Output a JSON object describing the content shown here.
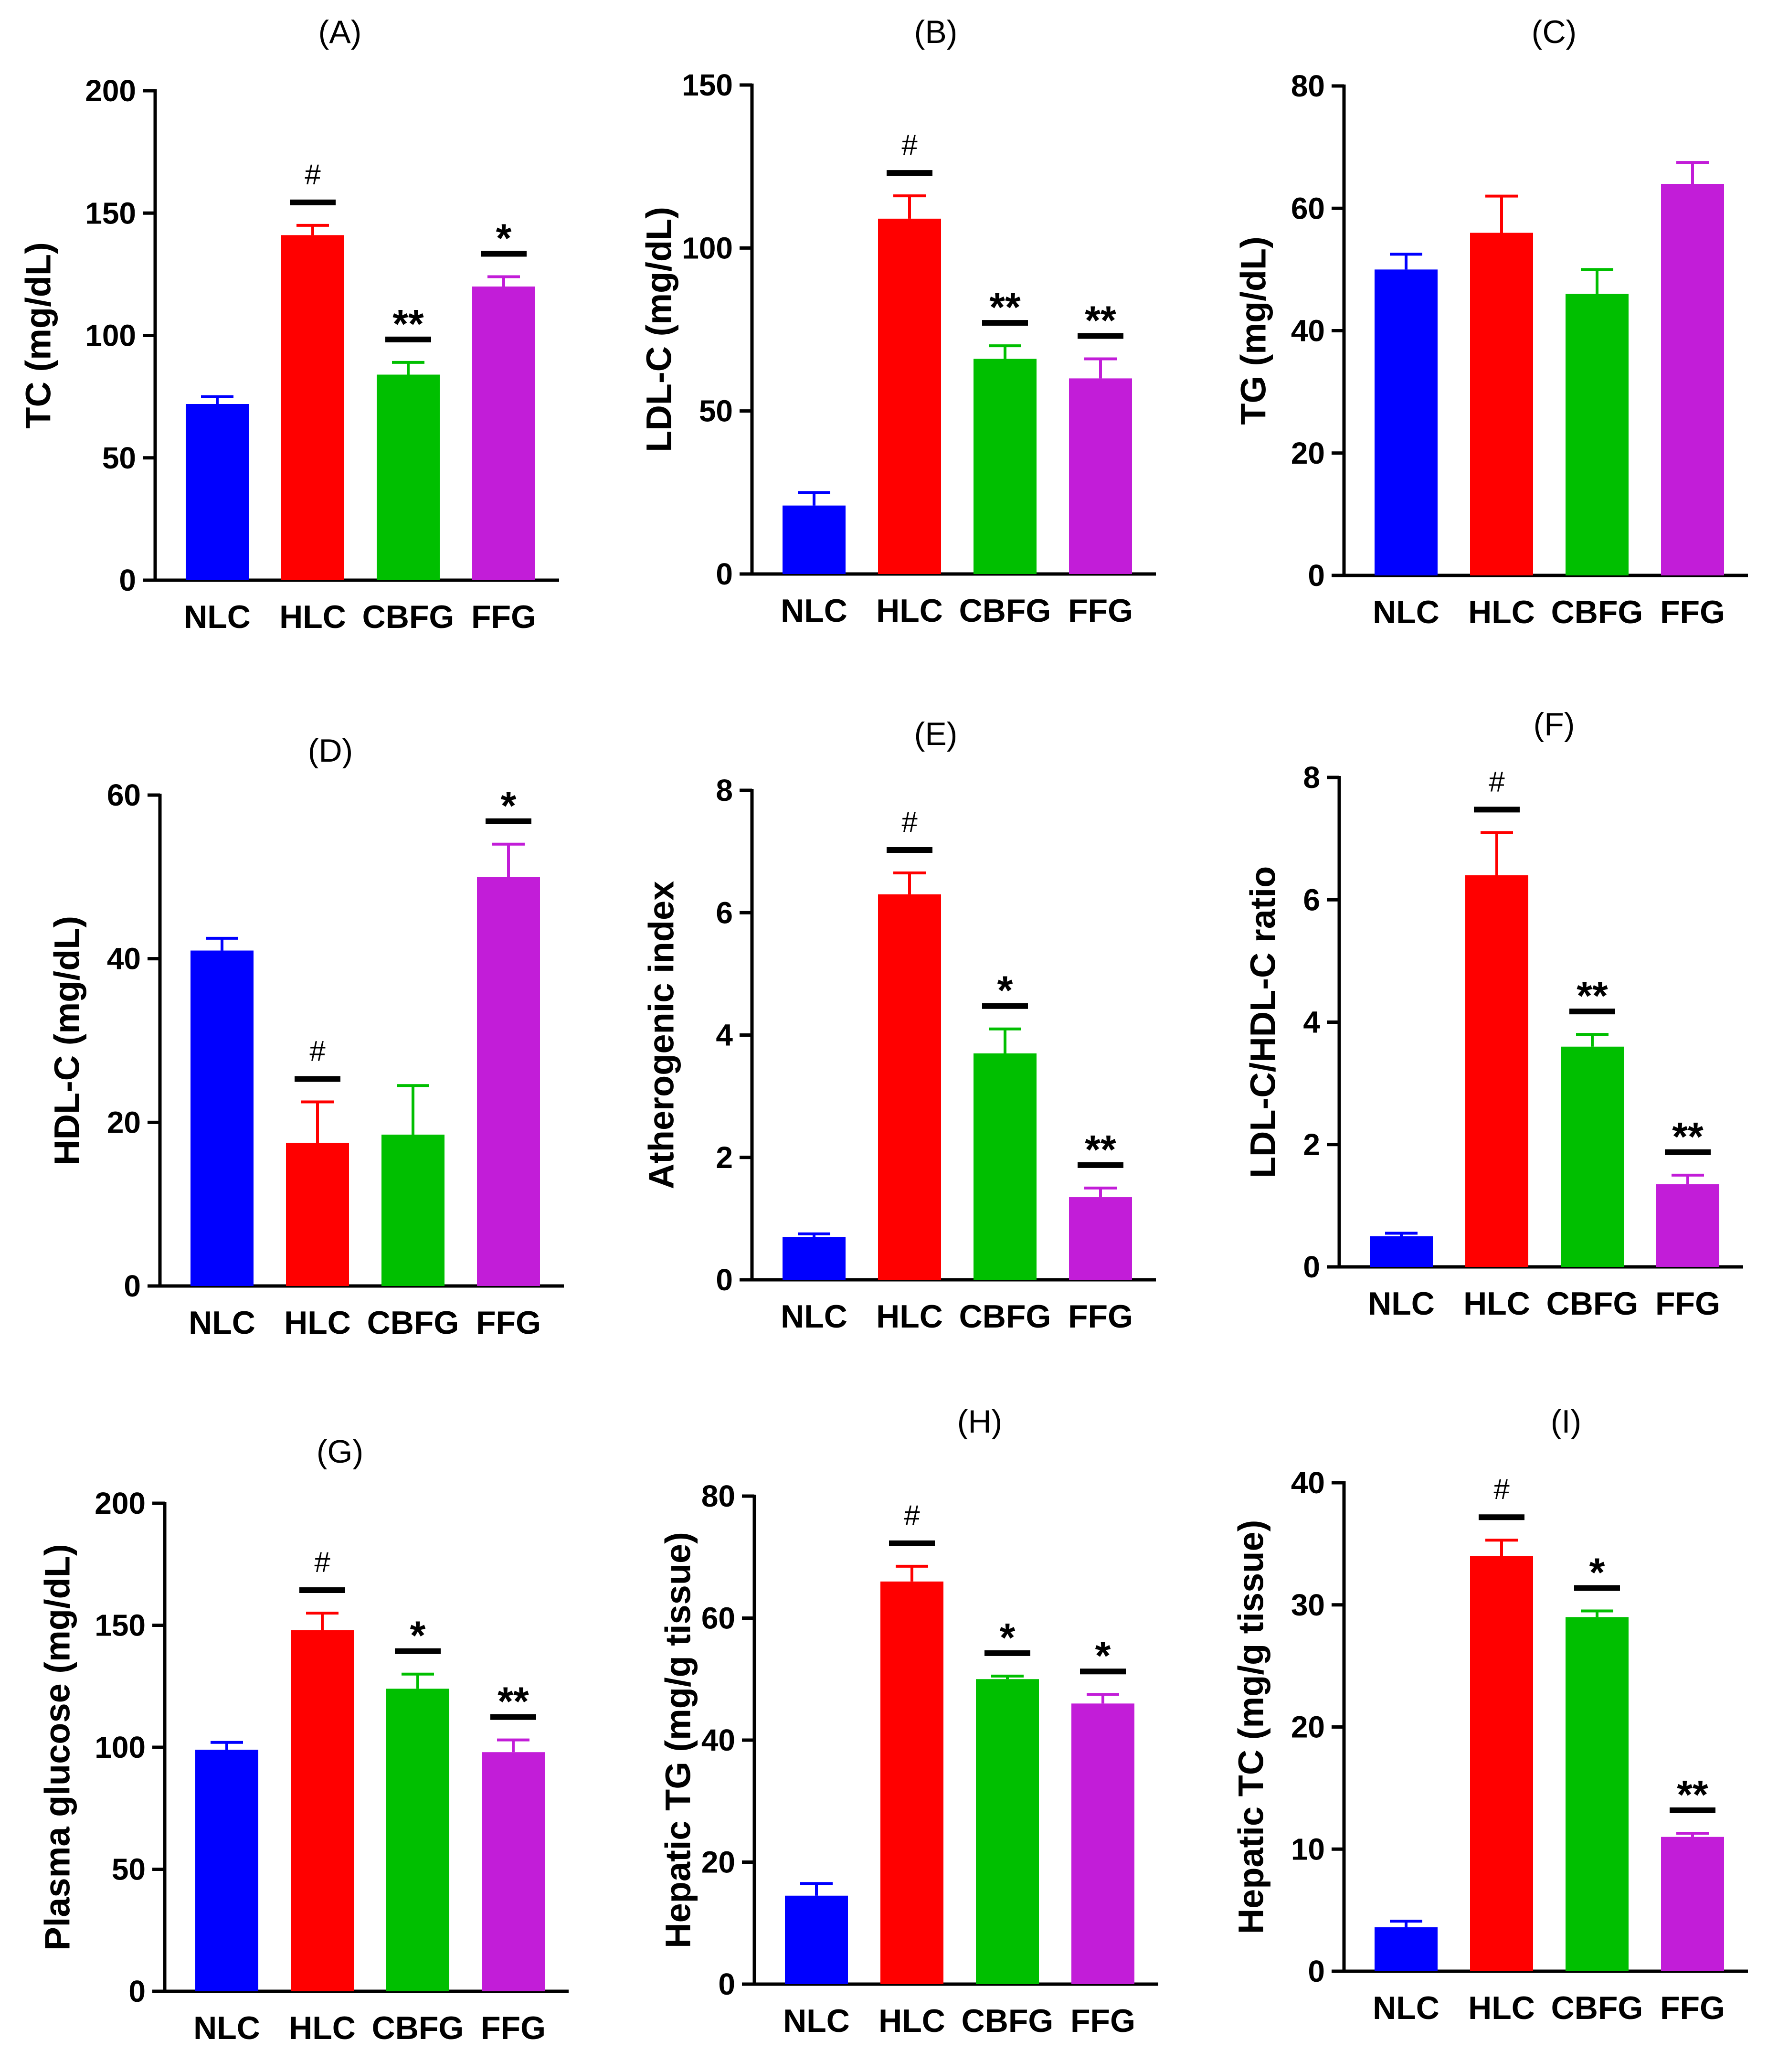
{
  "colors": {
    "NLC": "#0000ff",
    "HLC": "#ff0000",
    "CBFG": "#00bf00",
    "FFG": "#c21dd8"
  },
  "chart_data": [
    {
      "type": "bar",
      "title": "(A)",
      "ylabel": "TC (mg/dL)",
      "ylim": [
        0,
        200
      ],
      "ticks": [
        0,
        50,
        100,
        150,
        200
      ],
      "tick_labels": [
        "0",
        "50",
        "100",
        "150",
        "200"
      ],
      "categories": [
        "NLC",
        "HLC",
        "CBFG",
        "FFG"
      ],
      "values": [
        72,
        141,
        84,
        120
      ],
      "errors": [
        3,
        4,
        5,
        4
      ],
      "annotations": [
        "",
        "#",
        "**",
        "*"
      ]
    },
    {
      "type": "bar",
      "title": "(B)",
      "ylabel": "LDL-C (mg/dL)",
      "ylim": [
        0,
        150
      ],
      "ticks": [
        0,
        50,
        100,
        150
      ],
      "tick_labels": [
        "0",
        "50",
        "100",
        "150"
      ],
      "categories": [
        "NLC",
        "HLC",
        "CBFG",
        "FFG"
      ],
      "values": [
        21,
        109,
        66,
        60
      ],
      "errors": [
        4,
        7,
        4,
        6
      ],
      "annotations": [
        "",
        "#",
        "**",
        "**"
      ]
    },
    {
      "type": "bar",
      "title": "(C)",
      "ylabel": "TG (mg/dL)",
      "ylim": [
        0,
        80
      ],
      "ticks": [
        0,
        20,
        40,
        60,
        80
      ],
      "tick_labels": [
        "0",
        "20",
        "40",
        "60",
        "80"
      ],
      "categories": [
        "NLC",
        "HLC",
        "CBFG",
        "FFG"
      ],
      "values": [
        50,
        56,
        46,
        64
      ],
      "errors": [
        2.5,
        6,
        4,
        3.5
      ],
      "annotations": [
        "",
        "",
        "",
        ""
      ]
    },
    {
      "type": "bar",
      "title": "(D)",
      "ylabel": "HDL-C (mg/dL)",
      "ylim": [
        0,
        60
      ],
      "ticks": [
        0,
        20,
        40,
        60
      ],
      "tick_labels": [
        "0",
        "20",
        "40",
        "60"
      ],
      "categories": [
        "NLC",
        "HLC",
        "CBFG",
        "FFG"
      ],
      "values": [
        41,
        17.5,
        18.5,
        50
      ],
      "errors": [
        1.5,
        5,
        6,
        4
      ],
      "annotations": [
        "",
        "#",
        "",
        "*"
      ]
    },
    {
      "type": "bar",
      "title": "(E)",
      "ylabel": "Atherogenic index",
      "ylim": [
        0,
        8
      ],
      "ticks": [
        0,
        2,
        4,
        6,
        8
      ],
      "tick_labels": [
        "0",
        "2",
        "4",
        "6",
        "8"
      ],
      "categories": [
        "NLC",
        "HLC",
        "CBFG",
        "FFG"
      ],
      "values": [
        0.7,
        6.3,
        3.7,
        1.35
      ],
      "errors": [
        0.05,
        0.35,
        0.4,
        0.15
      ],
      "annotations": [
        "",
        "#",
        "*",
        "**"
      ]
    },
    {
      "type": "bar",
      "title": "(F)",
      "ylabel": "LDL-C/HDL-C ratio",
      "ylim": [
        0,
        8
      ],
      "ticks": [
        0,
        2,
        4,
        6,
        8
      ],
      "tick_labels": [
        "0",
        "2",
        "4",
        "6",
        "8"
      ],
      "categories": [
        "NLC",
        "HLC",
        "CBFG",
        "FFG"
      ],
      "values": [
        0.5,
        6.4,
        3.6,
        1.35
      ],
      "errors": [
        0.05,
        0.7,
        0.2,
        0.15
      ],
      "annotations": [
        "",
        "#",
        "**",
        "**"
      ]
    },
    {
      "type": "bar",
      "title": "(G)",
      "ylabel": "Plasma glucose (mg/dL)",
      "ylim": [
        0,
        200
      ],
      "ticks": [
        0,
        50,
        100,
        150,
        200
      ],
      "tick_labels": [
        "0",
        "50",
        "100",
        "150",
        "200"
      ],
      "categories": [
        "NLC",
        "HLC",
        "CBFG",
        "FFG"
      ],
      "values": [
        99,
        148,
        124,
        98
      ],
      "errors": [
        3,
        7,
        6,
        5
      ],
      "annotations": [
        "",
        "#",
        "*",
        "**"
      ]
    },
    {
      "type": "bar",
      "title": "(H)",
      "ylabel": "Hepatic TG (mg/g tissue)",
      "ylim": [
        0,
        80
      ],
      "ticks": [
        0,
        20,
        40,
        60,
        80
      ],
      "tick_labels": [
        "0",
        "20",
        "40",
        "60",
        "80"
      ],
      "categories": [
        "NLC",
        "HLC",
        "CBFG",
        "FFG"
      ],
      "values": [
        14.5,
        66,
        50,
        46
      ],
      "errors": [
        2,
        2.5,
        0.5,
        1.5
      ],
      "annotations": [
        "",
        "#",
        "*",
        "*"
      ]
    },
    {
      "type": "bar",
      "title": "(I)",
      "ylabel": "Hepatic TC (mg/g tissue)",
      "ylim": [
        0,
        40
      ],
      "ticks": [
        0,
        10,
        20,
        30,
        40
      ],
      "tick_labels": [
        "0",
        "10",
        "20",
        "30",
        "40"
      ],
      "categories": [
        "NLC",
        "HLC",
        "CBFG",
        "FFG"
      ],
      "values": [
        3.6,
        34,
        29,
        11
      ],
      "errors": [
        0.5,
        1.3,
        0.5,
        0.3
      ],
      "annotations": [
        "",
        "#",
        "*",
        "**"
      ]
    }
  ]
}
